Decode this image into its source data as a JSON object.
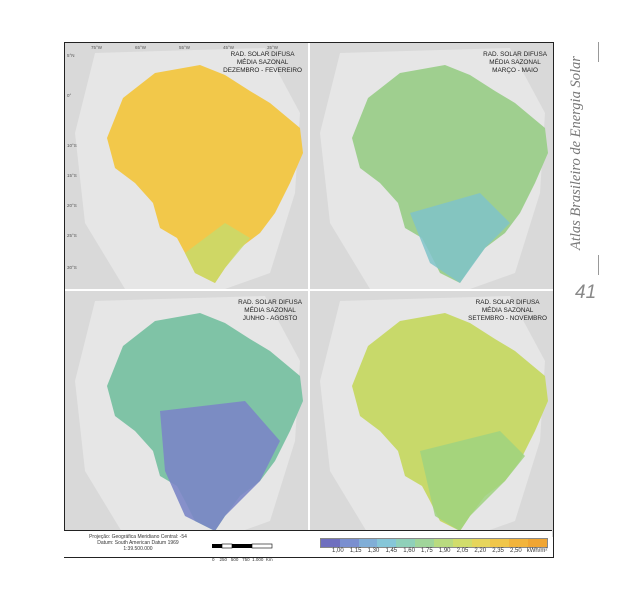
{
  "atlas_title": "Atlas Brasileiro de Energia Solar",
  "page_number": "41",
  "panels": [
    {
      "title_lines": [
        "RAD. SOLAR DIFUSA",
        "MÉDIA SAZONAL",
        "DEZEMBRO - FEVEREIRO"
      ],
      "dominant_color": "#f2c84a",
      "south_color": "#c9d96a"
    },
    {
      "title_lines": [
        "RAD. SOLAR DIFUSA",
        "MÉDIA SAZONAL",
        "MARÇO - MAIO"
      ],
      "dominant_color": "#9fcf8f",
      "south_color": "#7fc3c9"
    },
    {
      "title_lines": [
        "RAD. SOLAR DIFUSA",
        "MÉDIA SAZONAL",
        "JUNHO - AGOSTO"
      ],
      "dominant_color": "#7fc3a6",
      "south_color": "#7b86c7"
    },
    {
      "title_lines": [
        "RAD. SOLAR DIFUSA",
        "MÉDIA SAZONAL",
        "SETEMBRO - NOVEMBRO"
      ],
      "dominant_color": "#c8d96a",
      "south_color": "#9fd27f"
    }
  ],
  "lon_ticks": [
    "75°W",
    "65°W",
    "55°W",
    "45°W",
    "35°W"
  ],
  "lat_ticks": [
    "5°N",
    "0°",
    "10°S",
    "15°S",
    "20°S",
    "25°S",
    "30°S"
  ],
  "footer": {
    "projection": "Projeção: Geográfica     Meridiano Central: -54",
    "datum": "Datum: South American Datum 1969",
    "scale_ratio": "1:39.500.000",
    "scale_labels": [
      "0",
      "250",
      "500",
      "750",
      "1.000",
      "Km"
    ]
  },
  "legend": {
    "values": [
      "1,00",
      "1,15",
      "1,30",
      "1,45",
      "1,60",
      "1,75",
      "1,90",
      "2,05",
      "2,20",
      "2,35",
      "2,50"
    ],
    "unit": "kWh/m²",
    "colors": [
      "#6f6fbf",
      "#7a8fd0",
      "#80aed7",
      "#86c6d8",
      "#8fd0b9",
      "#a0d59a",
      "#b9db7f",
      "#d1dd6b",
      "#e6d55c",
      "#f0c64a",
      "#f2b43c",
      "#f0a532"
    ]
  }
}
